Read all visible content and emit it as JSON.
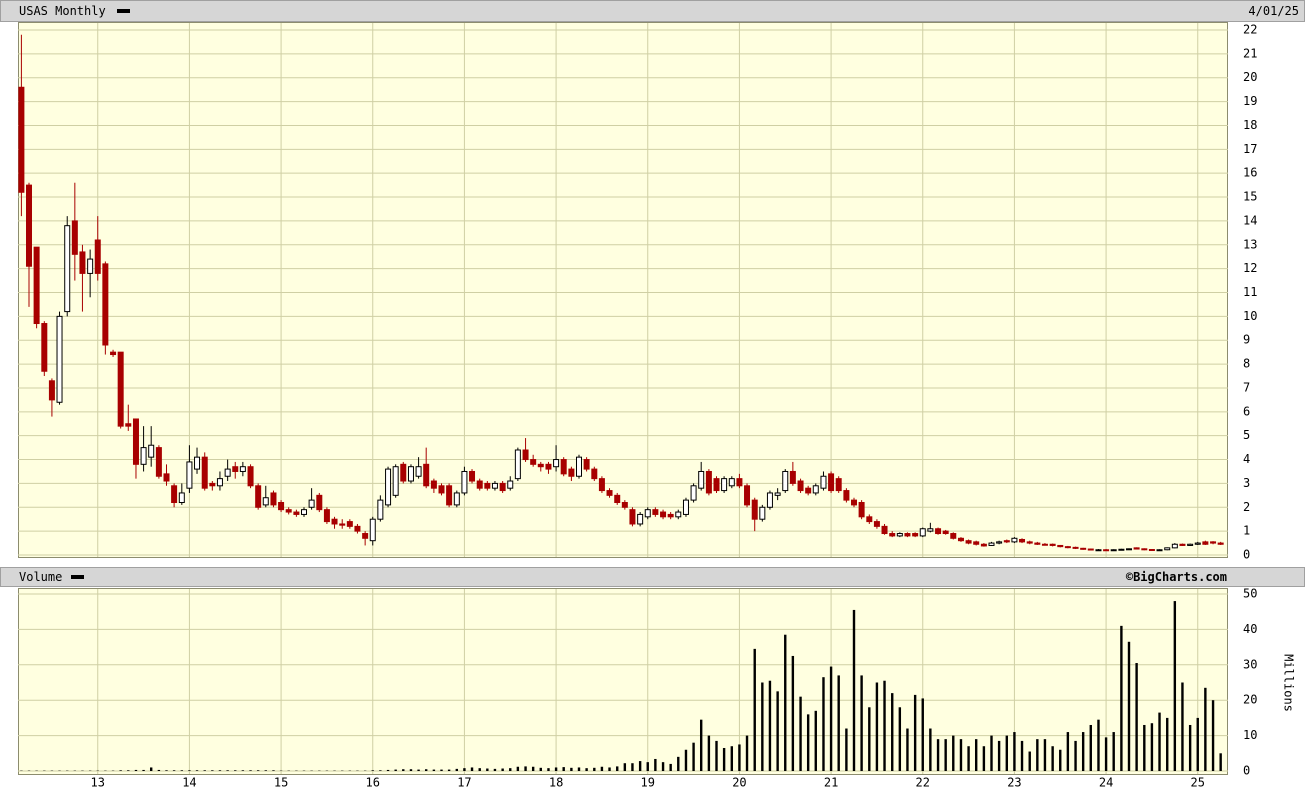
{
  "chart_data": {
    "type": "candlestick",
    "title": "USAS Monthly",
    "date": "4/01/25",
    "x": [
      12.167,
      12.25,
      12.333,
      12.417,
      12.5,
      12.583,
      12.667,
      12.75,
      12.833,
      12.917,
      13,
      13.083,
      13.167,
      13.25,
      13.333,
      13.417,
      13.5,
      13.583,
      13.667,
      13.75,
      13.833,
      13.917,
      14,
      14.083,
      14.167,
      14.25,
      14.333,
      14.417,
      14.5,
      14.583,
      14.667,
      14.75,
      14.833,
      14.917,
      15,
      15.083,
      15.167,
      15.25,
      15.333,
      15.417,
      15.5,
      15.583,
      15.667,
      15.75,
      15.833,
      15.917,
      16,
      16.083,
      16.167,
      16.25,
      16.333,
      16.417,
      16.5,
      16.583,
      16.667,
      16.75,
      16.833,
      16.917,
      17,
      17.083,
      17.167,
      17.25,
      17.333,
      17.417,
      17.5,
      17.583,
      17.667,
      17.75,
      17.833,
      17.917,
      18,
      18.083,
      18.167,
      18.25,
      18.333,
      18.417,
      18.5,
      18.583,
      18.667,
      18.75,
      18.833,
      18.917,
      19,
      19.083,
      19.167,
      19.25,
      19.333,
      19.417,
      19.5,
      19.583,
      19.667,
      19.75,
      19.833,
      19.917,
      20,
      20.083,
      20.167,
      20.25,
      20.333,
      20.417,
      20.5,
      20.583,
      20.667,
      20.75,
      20.833,
      20.917,
      21,
      21.083,
      21.167,
      21.25,
      21.333,
      21.417,
      21.5,
      21.583,
      21.667,
      21.75,
      21.833,
      21.917,
      22,
      22.083,
      22.167,
      22.25,
      22.333,
      22.417,
      22.5,
      22.583,
      22.667,
      22.75,
      22.833,
      22.917,
      23,
      23.083,
      23.167,
      23.25,
      23.333,
      23.417,
      23.5,
      23.583,
      23.667,
      23.75,
      23.833,
      23.917,
      24,
      24.083,
      24.167,
      24.25,
      24.333,
      24.417,
      24.5,
      24.583,
      24.667,
      24.75,
      24.833,
      24.917,
      25,
      25.083,
      25.167,
      25.25
    ],
    "open": [
      19.6,
      15.5,
      12.9,
      9.7,
      7.3,
      6.4,
      10.2,
      14.0,
      12.7,
      11.8,
      13.2,
      12.2,
      8.5,
      8.5,
      5.5,
      5.7,
      3.8,
      4.1,
      4.5,
      3.4,
      2.9,
      2.2,
      2.8,
      3.6,
      4.1,
      3.0,
      2.9,
      3.3,
      3.7,
      3.5,
      3.7,
      2.9,
      2.1,
      2.6,
      2.2,
      1.9,
      1.8,
      1.7,
      2.0,
      2.5,
      1.9,
      1.5,
      1.3,
      1.4,
      1.2,
      0.9,
      0.6,
      1.5,
      2.1,
      2.5,
      3.8,
      3.1,
      3.3,
      3.8,
      3.1,
      2.9,
      2.9,
      2.1,
      2.6,
      3.5,
      3.1,
      3.0,
      2.8,
      3.0,
      2.8,
      3.2,
      4.4,
      4.0,
      3.8,
      3.8,
      3.7,
      4.0,
      3.6,
      3.3,
      4.0,
      3.6,
      3.2,
      2.7,
      2.5,
      2.2,
      1.9,
      1.3,
      1.6,
      1.9,
      1.8,
      1.7,
      1.6,
      1.7,
      2.3,
      2.8,
      3.5,
      3.2,
      2.7,
      2.9,
      3.2,
      2.9,
      2.3,
      1.5,
      2.0,
      2.5,
      2.7,
      3.5,
      3.1,
      2.8,
      2.6,
      2.8,
      3.4,
      3.2,
      2.7,
      2.3,
      2.2,
      1.6,
      1.4,
      1.2,
      0.9,
      0.8,
      0.9,
      0.9,
      0.8,
      1.0,
      1.1,
      1.0,
      0.9,
      0.7,
      0.6,
      0.55,
      0.45,
      0.4,
      0.5,
      0.6,
      0.55,
      0.65,
      0.55,
      0.5,
      0.45,
      0.45,
      0.4,
      0.35,
      0.32,
      0.28,
      0.25,
      0.2,
      0.22,
      0.2,
      0.22,
      0.24,
      0.3,
      0.26,
      0.23,
      0.2,
      0.22,
      0.3,
      0.45,
      0.4,
      0.45,
      0.55,
      0.55,
      0.5
    ],
    "high": [
      21.8,
      15.6,
      12.9,
      9.8,
      7.4,
      10.2,
      14.2,
      15.6,
      13.0,
      12.8,
      14.2,
      12.3,
      8.6,
      8.5,
      6.3,
      5.7,
      5.4,
      5.4,
      4.6,
      3.8,
      3.0,
      3.0,
      4.6,
      4.5,
      4.3,
      3.1,
      3.5,
      4.0,
      3.9,
      3.9,
      3.8,
      3.0,
      2.9,
      2.7,
      2.3,
      2.0,
      1.9,
      2.0,
      2.8,
      2.6,
      2.0,
      1.6,
      1.5,
      1.5,
      1.3,
      1.0,
      1.6,
      2.5,
      3.7,
      3.8,
      3.9,
      3.8,
      4.1,
      4.5,
      3.2,
      3.0,
      3.0,
      2.7,
      3.7,
      3.6,
      3.2,
      3.1,
      3.1,
      3.1,
      3.3,
      4.5,
      4.9,
      4.2,
      3.9,
      3.9,
      4.6,
      4.1,
      3.7,
      4.2,
      4.1,
      3.7,
      3.3,
      2.8,
      2.6,
      2.3,
      2.0,
      1.8,
      2.0,
      2.0,
      1.9,
      1.8,
      1.9,
      2.4,
      3.0,
      3.9,
      3.6,
      3.3,
      3.3,
      3.3,
      3.4,
      3.0,
      2.4,
      2.1,
      2.7,
      2.8,
      3.6,
      3.9,
      3.2,
      2.9,
      3.0,
      3.5,
      3.5,
      3.3,
      2.8,
      2.4,
      2.3,
      1.7,
      1.5,
      1.3,
      1.0,
      0.95,
      0.95,
      0.95,
      1.15,
      1.35,
      1.15,
      1.05,
      0.95,
      0.75,
      0.65,
      0.6,
      0.5,
      0.55,
      0.6,
      0.65,
      0.75,
      0.7,
      0.6,
      0.55,
      0.5,
      0.48,
      0.42,
      0.38,
      0.35,
      0.3,
      0.27,
      0.25,
      0.25,
      0.24,
      0.26,
      0.28,
      0.32,
      0.28,
      0.25,
      0.24,
      0.32,
      0.5,
      0.48,
      0.48,
      0.55,
      0.6,
      0.58,
      0.55
    ],
    "low": [
      14.2,
      10.4,
      9.5,
      7.5,
      5.8,
      6.3,
      10.0,
      11.5,
      10.2,
      10.8,
      11.5,
      8.4,
      8.3,
      5.3,
      5.2,
      3.2,
      3.5,
      3.7,
      3.2,
      2.9,
      2.0,
      2.1,
      2.6,
      3.4,
      2.7,
      2.7,
      2.7,
      3.1,
      3.2,
      3.3,
      2.8,
      1.9,
      2.0,
      2.0,
      1.8,
      1.7,
      1.6,
      1.6,
      1.9,
      1.8,
      1.3,
      1.1,
      1.1,
      1.1,
      0.9,
      0.4,
      0.4,
      1.4,
      2.0,
      2.4,
      3.0,
      3.0,
      3.2,
      2.8,
      2.6,
      2.5,
      2.0,
      2.0,
      2.5,
      3.0,
      2.7,
      2.7,
      2.7,
      2.6,
      2.7,
      3.1,
      3.9,
      3.7,
      3.5,
      3.4,
      3.5,
      3.3,
      3.1,
      3.2,
      3.5,
      3.1,
      2.6,
      2.4,
      2.1,
      1.9,
      1.2,
      1.2,
      1.5,
      1.6,
      1.5,
      1.5,
      1.5,
      1.6,
      2.2,
      2.7,
      2.5,
      2.6,
      2.6,
      2.8,
      2.8,
      2.0,
      1.0,
      1.4,
      1.9,
      2.3,
      2.6,
      2.9,
      2.6,
      2.5,
      2.5,
      2.7,
      2.6,
      2.6,
      2.2,
      2.0,
      1.5,
      1.3,
      1.1,
      0.85,
      0.75,
      0.75,
      0.75,
      0.75,
      0.75,
      0.95,
      0.85,
      0.85,
      0.65,
      0.55,
      0.45,
      0.4,
      0.35,
      0.38,
      0.45,
      0.5,
      0.5,
      0.5,
      0.45,
      0.42,
      0.4,
      0.36,
      0.32,
      0.28,
      0.25,
      0.22,
      0.2,
      0.18,
      0.18,
      0.18,
      0.2,
      0.22,
      0.24,
      0.2,
      0.18,
      0.18,
      0.2,
      0.28,
      0.38,
      0.38,
      0.42,
      0.42,
      0.45,
      0.42
    ],
    "close": [
      15.2,
      12.1,
      9.7,
      7.7,
      6.5,
      10.0,
      13.8,
      12.6,
      11.8,
      12.4,
      11.8,
      8.8,
      8.4,
      5.4,
      5.4,
      3.8,
      4.5,
      4.6,
      3.3,
      3.1,
      2.2,
      2.6,
      3.9,
      4.1,
      2.8,
      2.9,
      3.2,
      3.6,
      3.5,
      3.7,
      2.9,
      2.0,
      2.4,
      2.1,
      1.9,
      1.8,
      1.7,
      1.9,
      2.3,
      1.9,
      1.4,
      1.3,
      1.25,
      1.2,
      1.0,
      0.7,
      1.5,
      2.3,
      3.6,
      3.7,
      3.1,
      3.7,
      3.7,
      2.9,
      2.8,
      2.6,
      2.1,
      2.6,
      3.5,
      3.1,
      2.8,
      2.8,
      3.0,
      2.7,
      3.1,
      4.4,
      4.0,
      3.8,
      3.7,
      3.6,
      4.0,
      3.4,
      3.3,
      4.1,
      3.6,
      3.2,
      2.7,
      2.5,
      2.2,
      2.0,
      1.3,
      1.7,
      1.9,
      1.7,
      1.6,
      1.6,
      1.8,
      2.3,
      2.9,
      3.5,
      2.6,
      2.7,
      3.2,
      3.2,
      2.9,
      2.1,
      1.5,
      2.0,
      2.6,
      2.6,
      3.5,
      3.0,
      2.7,
      2.6,
      2.9,
      3.3,
      2.7,
      2.7,
      2.3,
      2.1,
      1.6,
      1.4,
      1.2,
      0.9,
      0.8,
      0.9,
      0.8,
      0.8,
      1.1,
      1.1,
      0.9,
      0.9,
      0.7,
      0.6,
      0.5,
      0.45,
      0.38,
      0.5,
      0.55,
      0.55,
      0.7,
      0.55,
      0.5,
      0.45,
      0.42,
      0.4,
      0.35,
      0.32,
      0.28,
      0.25,
      0.22,
      0.22,
      0.2,
      0.22,
      0.24,
      0.26,
      0.25,
      0.22,
      0.2,
      0.22,
      0.3,
      0.45,
      0.4,
      0.45,
      0.5,
      0.45,
      0.5,
      0.45
    ],
    "xlim": [
      12.13,
      25.33
    ],
    "xticks": [
      13,
      14,
      15,
      16,
      17,
      18,
      19,
      20,
      21,
      22,
      23,
      24,
      25
    ],
    "ylim": [
      0,
      22
    ],
    "yticks": [
      0,
      1,
      2,
      3,
      4,
      5,
      6,
      7,
      8,
      9,
      10,
      11,
      12,
      13,
      14,
      15,
      16,
      17,
      18,
      19,
      20,
      21,
      22
    ],
    "grid": true,
    "colors": {
      "up": "#ffffff",
      "down": "#a80000",
      "outline": "#000000"
    },
    "volume": {
      "title": "Volume",
      "credit": "©BigCharts.com",
      "y_label": "Millions",
      "color": "#000000",
      "ylim": [
        0,
        50
      ],
      "yticks": [
        0,
        10,
        20,
        30,
        40,
        50
      ],
      "values": [
        0.1,
        0.1,
        0.1,
        0.1,
        0.1,
        0.1,
        0.1,
        0.1,
        0.1,
        0.1,
        0.1,
        0.1,
        0.1,
        0.2,
        0.2,
        0.3,
        0.3,
        1.0,
        0.3,
        0.2,
        0.2,
        0.2,
        0.2,
        0.2,
        0.2,
        0.2,
        0.2,
        0.2,
        0.2,
        0.2,
        0.2,
        0.2,
        0.2,
        0.2,
        0.1,
        0.1,
        0.1,
        0.1,
        0.1,
        0.1,
        0.1,
        0.1,
        0.1,
        0.1,
        0.1,
        0.1,
        0.2,
        0.2,
        0.3,
        0.4,
        0.5,
        0.5,
        0.4,
        0.5,
        0.4,
        0.4,
        0.4,
        0.6,
        0.8,
        1.0,
        0.8,
        0.7,
        0.6,
        0.7,
        0.8,
        1.2,
        1.3,
        1.2,
        0.9,
        0.8,
        1.0,
        1.1,
        0.9,
        1.0,
        0.8,
        0.9,
        1.2,
        1.0,
        1.3,
        2.2,
        2.2,
        2.8,
        2.5,
        3.4,
        2.5,
        2.0,
        4.0,
        6.0,
        8.0,
        14.5,
        10.0,
        8.5,
        6.5,
        7.0,
        7.5,
        10.0,
        34.5,
        25.0,
        25.5,
        22.5,
        38.5,
        32.5,
        21.0,
        16.0,
        17.0,
        26.5,
        29.5,
        27.0,
        12.0,
        45.5,
        27.0,
        18.0,
        25.0,
        25.5,
        22.0,
        18.0,
        12.0,
        21.5,
        20.5,
        12.0,
        9.0,
        9.0,
        10.0,
        9.0,
        7.0,
        9.0,
        7.0,
        10.0,
        8.5,
        10.0,
        11.0,
        8.5,
        5.5,
        9.0,
        9.0,
        7.0,
        6.0,
        11.0,
        8.5,
        11.0,
        13.0,
        14.5,
        9.5,
        11.0,
        41.0,
        36.5,
        30.5,
        13.0,
        13.5,
        16.5,
        15.0,
        48.0,
        25.0,
        13.0,
        15.0,
        23.5,
        20.0,
        5.0
      ]
    }
  }
}
